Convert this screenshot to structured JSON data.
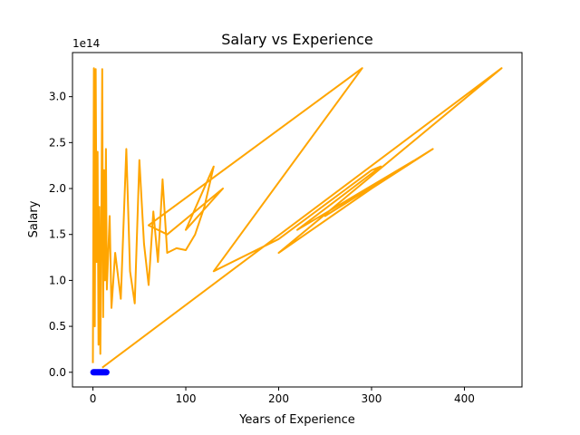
{
  "chart_data": {
    "type": "line",
    "title": "Salary vs Experience",
    "xlabel": "Years of Experience",
    "ylabel": "Salary",
    "y_offset_label": "1e14",
    "xlim": [
      -22,
      462
    ],
    "ylim": [
      -0.16,
      3.48
    ],
    "y_scale_factor": 100000000000000.0,
    "x_ticks": [
      0,
      100,
      200,
      300,
      400
    ],
    "x_tick_labels": [
      "0",
      "100",
      "200",
      "300",
      "400"
    ],
    "y_ticks": [
      0.0,
      0.5,
      1.0,
      1.5,
      2.0,
      2.5,
      3.0
    ],
    "y_tick_labels": [
      "0.0",
      "0.5",
      "1.0",
      "1.5",
      "2.0",
      "2.5",
      "3.0"
    ],
    "grid": false,
    "legend": "none",
    "series": [
      {
        "kind": "line",
        "color": "#ffa500",
        "points": [
          [
            0,
            0.1
          ],
          [
            1,
            3.31
          ],
          [
            2,
            0.5
          ],
          [
            3,
            3.3
          ],
          [
            4,
            1.2
          ],
          [
            5,
            2.4
          ],
          [
            6,
            0.3
          ],
          [
            7,
            1.8
          ],
          [
            8,
            0.2
          ],
          [
            9,
            1.5
          ],
          [
            10,
            3.3
          ],
          [
            11,
            0.6
          ],
          [
            12,
            2.2
          ],
          [
            13,
            1.0
          ],
          [
            14,
            2.43
          ],
          [
            15,
            0.9
          ],
          [
            18,
            1.7
          ],
          [
            20,
            0.7
          ],
          [
            24,
            1.3
          ],
          [
            30,
            0.8
          ],
          [
            36,
            2.43
          ],
          [
            40,
            1.1
          ],
          [
            45,
            0.75
          ],
          [
            50,
            2.31
          ],
          [
            55,
            1.4
          ],
          [
            60,
            0.95
          ],
          [
            65,
            1.75
          ],
          [
            70,
            1.2
          ],
          [
            75,
            2.1
          ],
          [
            80,
            1.3
          ],
          [
            90,
            1.35
          ],
          [
            100,
            1.33
          ],
          [
            110,
            1.5
          ],
          [
            120,
            1.8
          ],
          [
            130,
            2.24
          ],
          [
            100,
            1.55
          ],
          [
            140,
            2.0
          ],
          [
            80,
            1.5
          ],
          [
            60,
            1.6
          ],
          [
            290,
            3.31
          ],
          [
            130,
            1.1
          ],
          [
            200,
            1.45
          ],
          [
            260,
            1.9
          ],
          [
            300,
            2.2
          ],
          [
            310,
            2.24
          ],
          [
            220,
            1.55
          ],
          [
            345,
            2.3
          ],
          [
            250,
            1.7
          ],
          [
            366,
            2.43
          ],
          [
            300,
            2.0
          ],
          [
            200,
            1.3
          ],
          [
            440,
            3.31
          ],
          [
            10,
            0.05
          ]
        ]
      },
      {
        "kind": "scatter",
        "color": "#0000ff",
        "points": [
          [
            0.5,
            0.0
          ],
          [
            1.5,
            0.0
          ],
          [
            2.5,
            0.0
          ],
          [
            3.5,
            0.0
          ],
          [
            4.5,
            0.0
          ],
          [
            5.5,
            0.0
          ],
          [
            6.5,
            0.0
          ],
          [
            7.5,
            0.0
          ],
          [
            8.5,
            0.0
          ],
          [
            9.5,
            0.0
          ],
          [
            10.5,
            0.0
          ],
          [
            11.5,
            0.0
          ],
          [
            12.5,
            0.0
          ],
          [
            13.5,
            0.0
          ],
          [
            14.5,
            0.0
          ]
        ]
      }
    ]
  }
}
